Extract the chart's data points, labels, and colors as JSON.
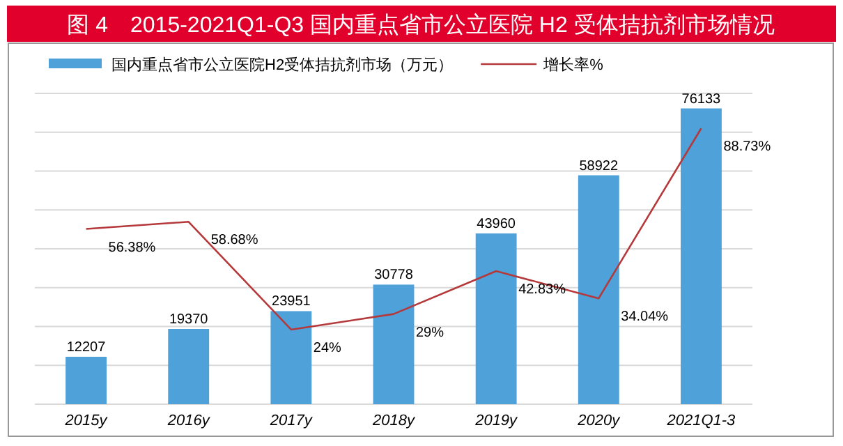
{
  "chart_data": {
    "type": "bar",
    "title": "图 4　2015-2021Q1-Q3 国内重点省市公立医院 H2 受体拮抗剂市场情况",
    "categories": [
      "2015y",
      "2016y",
      "2017y",
      "2018y",
      "2019y",
      "2020y",
      "2021Q1-3"
    ],
    "series": [
      {
        "name": "国内重点省市公立医院H2受体拮抗剂市场（万元）",
        "color": "#4ea1d9",
        "values": [
          12207,
          19370,
          23951,
          30778,
          43960,
          58922,
          76133
        ],
        "value_labels": [
          "12207",
          "19370",
          "23951",
          "30778",
          "43960",
          "58922",
          "76133"
        ]
      },
      {
        "name": "增长率%",
        "type": "line",
        "axis": "y2",
        "color": "#b5383b",
        "values": [
          56.38,
          58.68,
          24,
          29,
          42.83,
          34.04,
          88.73
        ],
        "value_labels": [
          "56.38%",
          "58.68%",
          "24%",
          "29%",
          "42.83%",
          "34.04%",
          "88.73%"
        ]
      }
    ],
    "ylim": [
      0,
      80000
    ],
    "yticks": [
      {
        "value": 0,
        "label": null
      },
      {
        "value": 10000,
        "label": null
      },
      {
        "value": 20000,
        "label": null
      },
      {
        "value": 30000,
        "label": null
      },
      {
        "value": 40000,
        "label": null
      },
      {
        "value": 50000,
        "label": null
      },
      {
        "value": 60000,
        "label": null
      },
      {
        "value": 70000,
        "label": null
      },
      {
        "value": 80000,
        "label": null
      }
    ],
    "y2lim": [
      0,
      100
    ],
    "grid": "y",
    "legend": "top",
    "tick_labels": "x"
  }
}
